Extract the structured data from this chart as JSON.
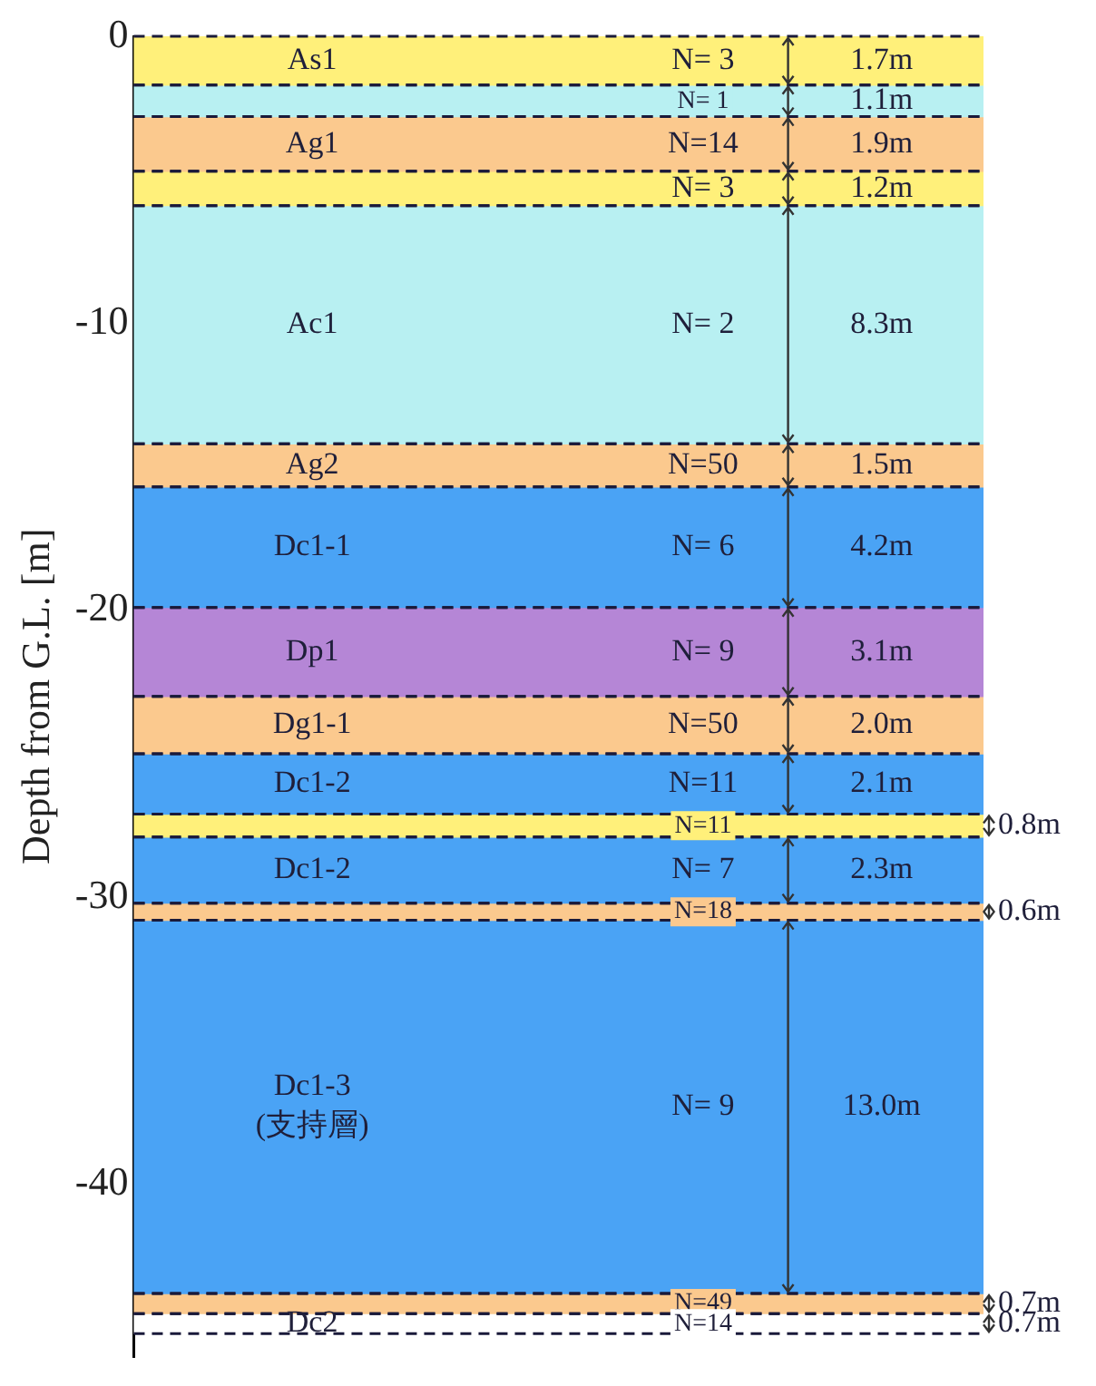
{
  "chart_data": {
    "type": "bar",
    "categories": [
      null
    ],
    "ylabel": "Depth from G.L. [m]",
    "ylim": [
      -46,
      0
    ],
    "yticks": [
      0,
      -10,
      -20,
      -30,
      -40
    ],
    "tick_labels": "y",
    "legend": false,
    "series": [
      {
        "name": "As1",
        "color": "#fff07a",
        "base": [
          -1.7
        ],
        "values": [
          1.7
        ],
        "value_labels": [
          "1.7m"
        ]
      },
      {
        "color": "#b8f0f2",
        "base": [
          -2.8
        ],
        "values": [
          1.1
        ],
        "value_labels": [
          "1.1m"
        ]
      },
      {
        "name": "Ag1",
        "color": "#fbc98e",
        "base": [
          -4.7
        ],
        "values": [
          1.9
        ],
        "value_labels": [
          "1.9m"
        ]
      },
      {
        "color": "#fff07a",
        "base": [
          -5.9
        ],
        "values": [
          1.2
        ],
        "value_labels": [
          "1.2m"
        ]
      },
      {
        "name": "Ac1",
        "color": "#b8f0f2",
        "base": [
          -14.2
        ],
        "values": [
          8.3
        ],
        "value_labels": [
          "8.3m"
        ]
      },
      {
        "name": "Ag2",
        "color": "#fbc98e",
        "base": [
          -15.7
        ],
        "values": [
          1.5
        ],
        "value_labels": [
          "1.5m"
        ]
      },
      {
        "name": "Dc1-1",
        "color": "#4aa3f5",
        "base": [
          -19.9
        ],
        "values": [
          4.2
        ],
        "value_labels": [
          "4.2m"
        ]
      },
      {
        "name": "Dp1",
        "color": "#b586d6",
        "base": [
          -23.0
        ],
        "values": [
          3.1
        ],
        "value_labels": [
          "3.1m"
        ]
      },
      {
        "name": "Dg1-1",
        "color": "#fbc98e",
        "base": [
          -25.0
        ],
        "values": [
          2.0
        ],
        "value_labels": [
          "2.0m"
        ]
      },
      {
        "name": "Dc1-2",
        "color": "#4aa3f5",
        "base": [
          -27.1
        ],
        "values": [
          2.1
        ],
        "value_labels": [
          "2.1m"
        ]
      },
      {
        "color": "#fff07a",
        "base": [
          -27.9
        ],
        "values": [
          0.8
        ],
        "value_labels": [
          "0.8m"
        ]
      },
      {
        "name": "Dc1-2",
        "color": "#4aa3f5",
        "base": [
          -30.2
        ],
        "values": [
          2.3
        ],
        "value_labels": [
          "2.3m"
        ]
      },
      {
        "color": "#fbc98e",
        "base": [
          -30.8
        ],
        "values": [
          0.6
        ],
        "value_labels": [
          "0.6m"
        ]
      },
      {
        "name": "Dc1-3 (支持層)",
        "color": "#4aa3f5",
        "base": [
          -43.8
        ],
        "values": [
          13.0
        ],
        "value_labels": [
          "13.0m"
        ]
      },
      {
        "color": "#fbc98e",
        "base": [
          -44.5
        ],
        "values": [
          0.7
        ],
        "value_labels": [
          "0.7m"
        ]
      },
      {
        "name": "Dc2",
        "color": "#ffffff",
        "base": [
          -45.2
        ],
        "values": [
          0.7
        ],
        "value_labels": [
          "0.7m"
        ]
      }
    ],
    "annotations": [
      "N= 3",
      "N= 1",
      "N=14",
      "N= 3",
      "N= 2",
      "N=50",
      "N= 6",
      "N= 9",
      "N=50",
      "N=11",
      "N=11",
      "N= 7",
      "N=18",
      "N= 9",
      "N=49",
      "N=14"
    ]
  }
}
